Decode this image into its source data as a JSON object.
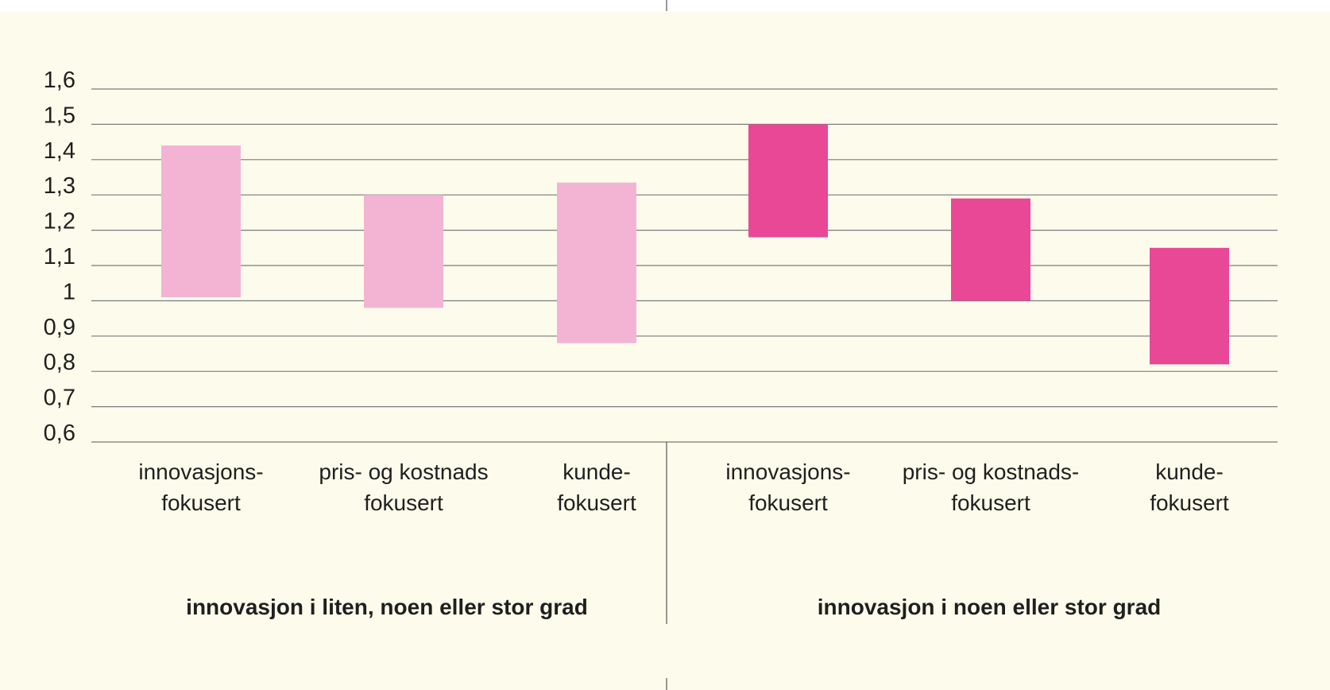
{
  "chart_data": {
    "type": "bar",
    "subtype": "floating-range",
    "ylim": [
      0.6,
      1.6
    ],
    "yticks": [
      "0,6",
      "0,7",
      "0,8",
      "0,9",
      "1",
      "1,1",
      "1,2",
      "1,3",
      "1,4",
      "1,5",
      "1,6"
    ],
    "ytick_values": [
      0.6,
      0.7,
      0.8,
      0.9,
      1.0,
      1.1,
      1.2,
      1.3,
      1.4,
      1.5,
      1.6
    ],
    "grid": true,
    "groups": [
      {
        "label": "innovasjon i liten, noen eller stor grad",
        "color": "#f3b4d3",
        "categories": [
          {
            "lines": [
              "innovasjons-",
              "fokusert"
            ],
            "low": 1.01,
            "high": 1.44
          },
          {
            "lines": [
              "pris- og kostnads",
              "fokusert"
            ],
            "low": 0.98,
            "high": 1.3
          },
          {
            "lines": [
              "kunde-",
              "fokusert"
            ],
            "low": 0.88,
            "high": 1.335
          }
        ]
      },
      {
        "label": "innovasjon i noen eller stor grad",
        "color": "#e84896",
        "categories": [
          {
            "lines": [
              "innovasjons-",
              "fokusert"
            ],
            "low": 1.18,
            "high": 1.5
          },
          {
            "lines": [
              "pris- og kostnads-",
              "fokusert"
            ],
            "low": 1.0,
            "high": 1.29
          },
          {
            "lines": [
              "kunde-",
              "fokusert"
            ],
            "low": 0.82,
            "high": 1.15
          }
        ]
      }
    ]
  }
}
